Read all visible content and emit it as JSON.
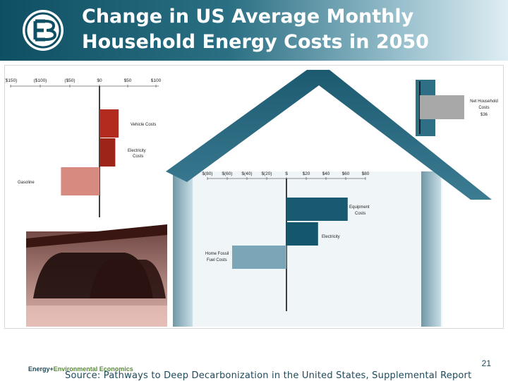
{
  "header": {
    "title_line1": "Change in US Average Monthly",
    "title_line2": "Household Energy Costs in 2050"
  },
  "footer": {
    "org_name_part1": "Energy+",
    "org_name_part2": "Environmental Economics",
    "page_number": "21",
    "source": "Source: Pathways to Deep Decarbonization in the United States, Supplemental Report"
  },
  "colors": {
    "header_dark": "#0f4f63",
    "vehicle_red": "#b32a1f",
    "gasoline_pink": "#d68a80",
    "home_teal": "#1a5a70",
    "home_light": "#7aa6b8",
    "net_gray": "#a8a8a8"
  },
  "chart_data": [
    {
      "type": "bar",
      "orientation": "horizontal",
      "x_ticks": [
        "($150)",
        "($100)",
        "($50)",
        "$0",
        "$50",
        "$100"
      ],
      "xlim": [
        -150,
        100
      ],
      "categories": [
        "Vehicle Costs",
        "Electricity Costs",
        "Gasoline"
      ],
      "values": [
        34,
        28,
        -65
      ]
    },
    {
      "type": "bar",
      "orientation": "horizontal",
      "x_ticks": [
        "$(80)",
        "$(60)",
        "$(40)",
        "$(20)",
        "$",
        "$20",
        "$40",
        "$60",
        "$80"
      ],
      "xlim": [
        -80,
        80
      ],
      "categories": [
        "Equipment Costs",
        "Electricity",
        "Home Fossil Fuel Costs"
      ],
      "values": [
        62,
        32,
        -55
      ]
    },
    {
      "type": "bar",
      "orientation": "horizontal",
      "categories": [
        "Net Household Costs"
      ],
      "value_label": "$36",
      "values": [
        36
      ]
    }
  ]
}
